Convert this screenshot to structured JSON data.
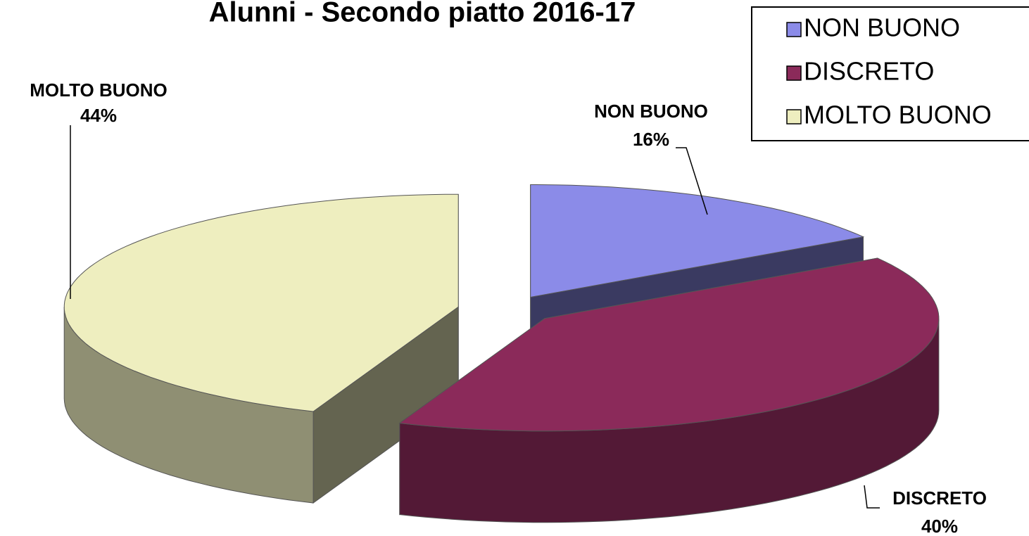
{
  "chart_data": {
    "type": "pie3d",
    "title": "Alunni - Secondo piatto 2016-17",
    "categories": [
      "NON BUONO",
      "DISCRETO",
      "MOLTO BUONO"
    ],
    "values": [
      16,
      40,
      44
    ],
    "value_labels": [
      "16%",
      "40%",
      "44%"
    ],
    "colors": [
      "#8b8be8",
      "#8b2a5a",
      "#eeeebf"
    ],
    "legend": "top-right"
  }
}
